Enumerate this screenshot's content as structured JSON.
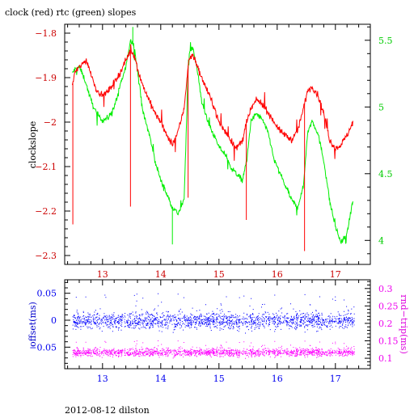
{
  "chart_data": [
    {
      "type": "line",
      "title": "clock (red) rtc (green) slopes",
      "ylabel": "clockslope",
      "y2label": "",
      "xlim": [
        12.35,
        17.6
      ],
      "ylim": [
        -2.32,
        -1.78
      ],
      "y2lim": [
        3.82,
        5.62
      ],
      "xticks": [
        13,
        14,
        15,
        16,
        17
      ],
      "yticks": [
        -2.3,
        -2.2,
        -2.1,
        -2,
        -1.9,
        -1.8
      ],
      "y2ticks": [
        4,
        4.5,
        5,
        5.5
      ],
      "colors": {
        "left_axis": "#cc0000",
        "right_axis": "#00cc00",
        "x_axis": "#cc0000"
      },
      "series": [
        {
          "name": "clock",
          "color": "#ff0000",
          "axis": "left",
          "x": [
            12.48,
            12.52,
            12.58,
            12.65,
            12.72,
            12.8,
            12.9,
            13.0,
            13.1,
            13.2,
            13.3,
            13.4,
            13.48,
            13.55,
            13.62,
            13.7,
            13.8,
            13.9,
            14.0,
            14.1,
            14.2,
            14.3,
            14.4,
            14.48,
            14.55,
            14.62,
            14.7,
            14.8,
            14.9,
            15.0,
            15.1,
            15.2,
            15.3,
            15.4,
            15.48,
            15.55,
            15.65,
            15.75,
            15.85,
            15.95,
            16.05,
            16.15,
            16.25,
            16.35,
            16.45,
            16.52,
            16.6,
            16.7,
            16.8,
            16.9,
            17.0,
            17.1,
            17.2,
            17.3
          ],
          "y": [
            -1.92,
            -1.89,
            -1.88,
            -1.87,
            -1.86,
            -1.89,
            -1.93,
            -1.94,
            -1.93,
            -1.91,
            -1.89,
            -1.86,
            -1.84,
            -1.85,
            -1.89,
            -1.92,
            -1.95,
            -1.98,
            -2.0,
            -2.03,
            -2.05,
            -2.02,
            -1.97,
            -1.86,
            -1.85,
            -1.87,
            -1.9,
            -1.93,
            -1.96,
            -2.0,
            -2.02,
            -2.04,
            -2.06,
            -2.04,
            -2.0,
            -1.97,
            -1.95,
            -1.96,
            -1.98,
            -2.0,
            -2.02,
            -2.03,
            -2.04,
            -2.02,
            -1.97,
            -1.93,
            -1.92,
            -1.94,
            -1.98,
            -2.04,
            -2.06,
            -2.05,
            -2.03,
            -2.0
          ],
          "spikes": [
            {
              "x": 12.49,
              "y": -2.23
            },
            {
              "x": 13.48,
              "y": -2.19
            },
            {
              "x": 14.47,
              "y": -2.17
            },
            {
              "x": 15.47,
              "y": -2.22
            },
            {
              "x": 16.47,
              "y": -2.29
            }
          ]
        },
        {
          "name": "rtc",
          "color": "#00ee00",
          "axis": "right",
          "x": [
            12.48,
            12.52,
            12.6,
            12.7,
            12.8,
            12.9,
            13.0,
            13.1,
            13.2,
            13.3,
            13.4,
            13.48,
            13.55,
            13.62,
            13.7,
            13.8,
            13.9,
            14.0,
            14.1,
            14.2,
            14.3,
            14.4,
            14.48,
            14.55,
            14.62,
            14.7,
            14.8,
            14.9,
            15.0,
            15.1,
            15.2,
            15.3,
            15.4,
            15.48,
            15.55,
            15.65,
            15.75,
            15.85,
            15.95,
            16.05,
            16.15,
            16.25,
            16.35,
            16.45,
            16.52,
            16.6,
            16.7,
            16.8,
            16.9,
            17.0,
            17.1,
            17.2,
            17.3
          ],
          "y": [
            5.25,
            5.28,
            5.3,
            5.2,
            5.05,
            4.95,
            4.9,
            4.92,
            5.0,
            5.15,
            5.3,
            5.5,
            5.45,
            5.2,
            4.95,
            4.8,
            4.6,
            4.45,
            4.35,
            4.25,
            4.2,
            4.3,
            5.4,
            5.45,
            5.3,
            5.05,
            4.9,
            4.8,
            4.7,
            4.65,
            4.55,
            4.5,
            4.45,
            4.6,
            4.9,
            4.95,
            4.9,
            4.8,
            4.6,
            4.5,
            4.4,
            4.3,
            4.25,
            4.4,
            4.8,
            4.9,
            4.8,
            4.6,
            4.3,
            4.1,
            3.98,
            4.05,
            4.3
          ],
          "spikes": [
            {
              "x": 13.52,
              "y": 5.6
            },
            {
              "x": 14.2,
              "y": 3.97
            }
          ]
        }
      ]
    },
    {
      "type": "scatter",
      "title": "",
      "ylabel": "offset(ms)",
      "y2label": "rnd−trip(ms)",
      "xlim": [
        12.35,
        17.6
      ],
      "ylim": [
        -0.09,
        0.075
      ],
      "y2lim": [
        0.07,
        0.325
      ],
      "xticks": [
        13,
        14,
        15,
        16,
        17
      ],
      "yticks": [
        -0.05,
        0,
        0.05
      ],
      "y2ticks": [
        0.1,
        0.15,
        0.2,
        0.25,
        0.3
      ],
      "colors": {
        "left_axis": "#0000ee",
        "right_axis": "#ee00ee",
        "x_axis": "#0000ee"
      },
      "series": [
        {
          "name": "offset",
          "color": "#0000ff",
          "axis": "left",
          "x_range": [
            12.48,
            17.32
          ],
          "center": 0.0,
          "spread": 0.012,
          "outlier_spread": 0.03
        },
        {
          "name": "rnd-trip",
          "color": "#ff00ff",
          "axis": "right",
          "x_range": [
            12.48,
            17.32
          ],
          "center": 0.118,
          "spread": 0.009,
          "outlier_spread": 0.02
        }
      ]
    }
  ],
  "footer": "2012-08-12 dilston"
}
